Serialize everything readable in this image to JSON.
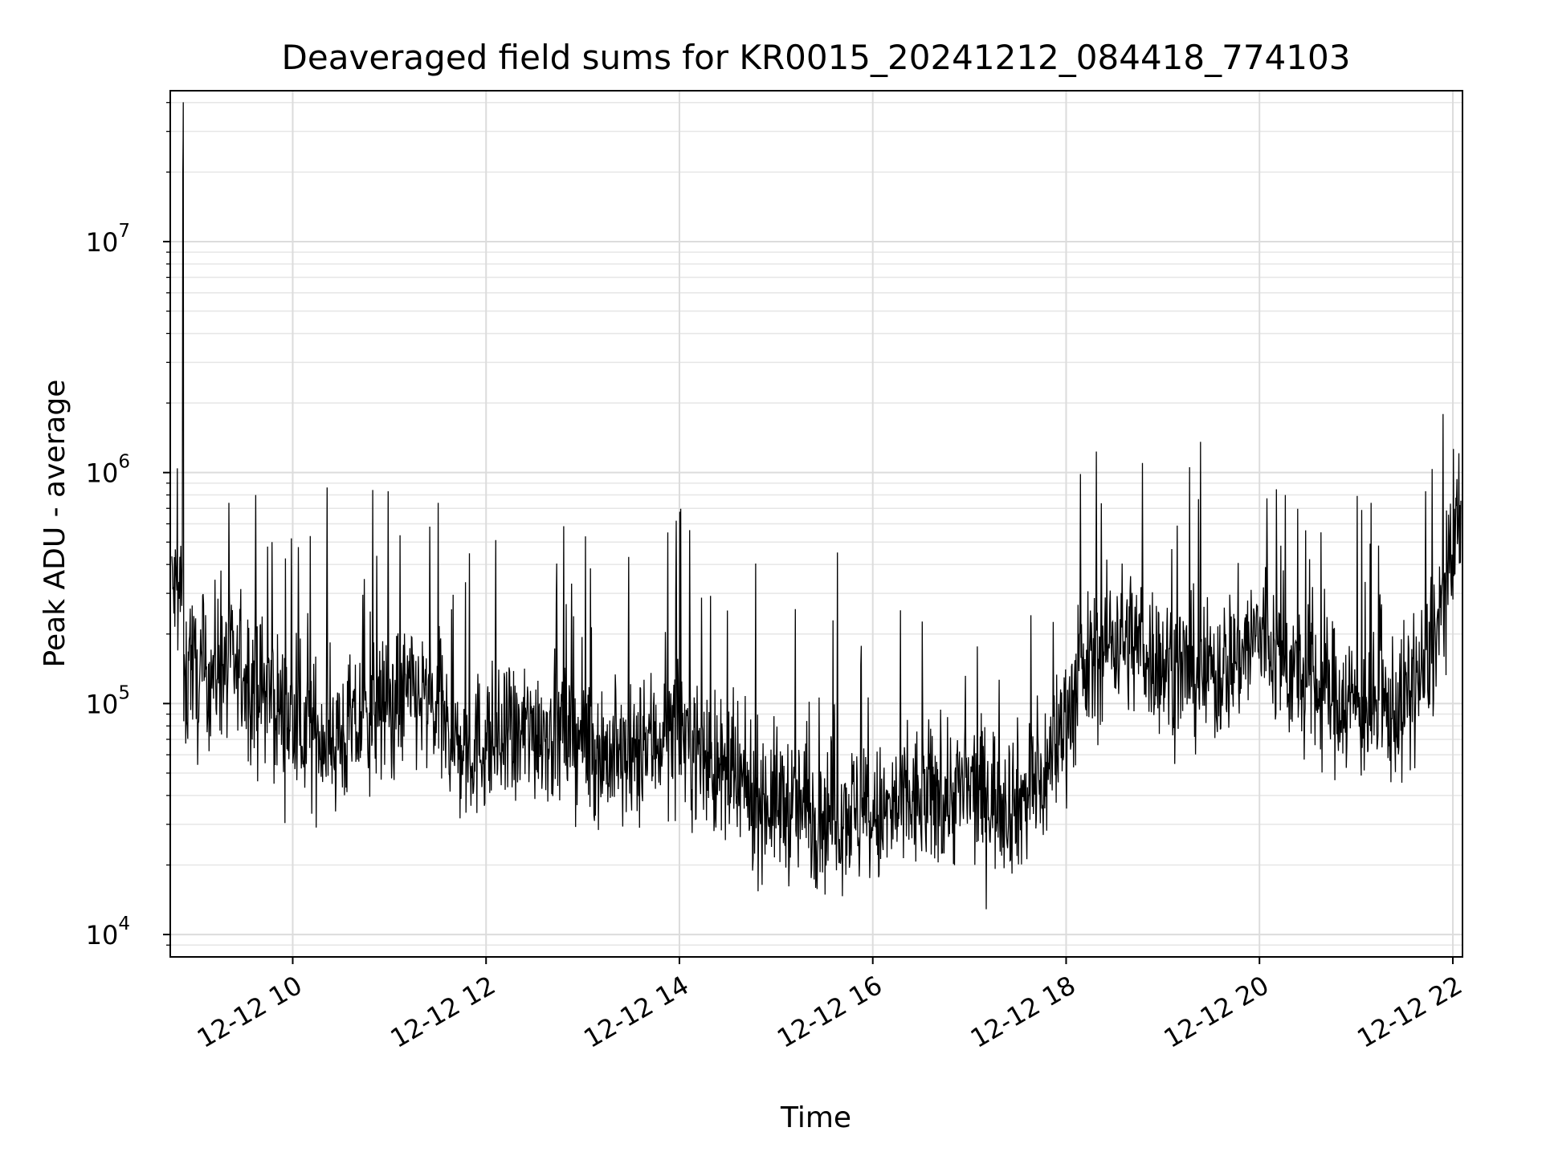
{
  "chart_data": {
    "type": "line",
    "title": "Deaveraged field sums for KR0015_20241212_084418_774103",
    "xlabel": "Time",
    "ylabel": "Peak ADU - average",
    "yscale": "log",
    "xlim": [
      "2024-12-12 08:44",
      "2024-12-12 22:06"
    ],
    "ylim": [
      8000,
      45000000
    ],
    "x_ticks": [
      {
        "time": "2024-12-12 10:00",
        "label": "12-12 10"
      },
      {
        "time": "2024-12-12 12:00",
        "label": "12-12 12"
      },
      {
        "time": "2024-12-12 14:00",
        "label": "12-12 14"
      },
      {
        "time": "2024-12-12 16:00",
        "label": "12-12 16"
      },
      {
        "time": "2024-12-12 18:00",
        "label": "12-12 18"
      },
      {
        "time": "2024-12-12 20:00",
        "label": "12-12 20"
      },
      {
        "time": "2024-12-12 22:00",
        "label": "12-12 22"
      }
    ],
    "y_ticks": [
      {
        "value": 10000,
        "base": "10",
        "exp": "4"
      },
      {
        "value": 100000,
        "base": "10",
        "exp": "5"
      },
      {
        "value": 1000000,
        "base": "10",
        "exp": "6"
      },
      {
        "value": 10000000,
        "base": "10",
        "exp": "7"
      }
    ],
    "grid": true,
    "line_color": "#000000",
    "series": [
      {
        "x": [
          "2024-12-12 08:45",
          "2024-12-12 08:52",
          "2024-12-12 08:55",
          "2024-12-12 09:00",
          "2024-12-12 09:15",
          "2024-12-12 09:30",
          "2024-12-12 09:45",
          "2024-12-12 10:00",
          "2024-12-12 10:15",
          "2024-12-12 10:30",
          "2024-12-12 10:45",
          "2024-12-12 11:00",
          "2024-12-12 11:15",
          "2024-12-12 11:30",
          "2024-12-12 11:45",
          "2024-12-12 12:00",
          "2024-12-12 12:15",
          "2024-12-12 12:30",
          "2024-12-12 12:45",
          "2024-12-12 13:00",
          "2024-12-12 13:15",
          "2024-12-12 13:30",
          "2024-12-12 13:45",
          "2024-12-12 14:00",
          "2024-12-12 14:15",
          "2024-12-12 14:30",
          "2024-12-12 14:45",
          "2024-12-12 15:00",
          "2024-12-12 15:15",
          "2024-12-12 15:30",
          "2024-12-12 15:45",
          "2024-12-12 16:00",
          "2024-12-12 16:15",
          "2024-12-12 16:30",
          "2024-12-12 16:45",
          "2024-12-12 17:00",
          "2024-12-12 17:15",
          "2024-12-12 17:30",
          "2024-12-12 17:45",
          "2024-12-12 18:00",
          "2024-12-12 18:15",
          "2024-12-12 18:30",
          "2024-12-12 18:45",
          "2024-12-12 19:00",
          "2024-12-12 19:15",
          "2024-12-12 19:30",
          "2024-12-12 19:45",
          "2024-12-12 20:00",
          "2024-12-12 20:15",
          "2024-12-12 20:30",
          "2024-12-12 20:45",
          "2024-12-12 21:00",
          "2024-12-12 21:15",
          "2024-12-12 21:30",
          "2024-12-12 21:45",
          "2024-12-12 22:00",
          "2024-12-12 22:05"
        ],
        "y": [
          300000,
          28000000,
          200000,
          120000,
          150000,
          130000,
          110000,
          80000,
          75000,
          70000,
          85000,
          100000,
          110000,
          90000,
          60000,
          70000,
          65000,
          80000,
          75000,
          70000,
          60000,
          55000,
          70000,
          80000,
          60000,
          45000,
          40000,
          38000,
          35000,
          33000,
          35000,
          30000,
          35000,
          38000,
          40000,
          42000,
          40000,
          38000,
          45000,
          90000,
          150000,
          200000,
          180000,
          150000,
          140000,
          130000,
          160000,
          200000,
          150000,
          120000,
          110000,
          100000,
          90000,
          100000,
          150000,
          400000,
          700000
        ]
      }
    ]
  }
}
